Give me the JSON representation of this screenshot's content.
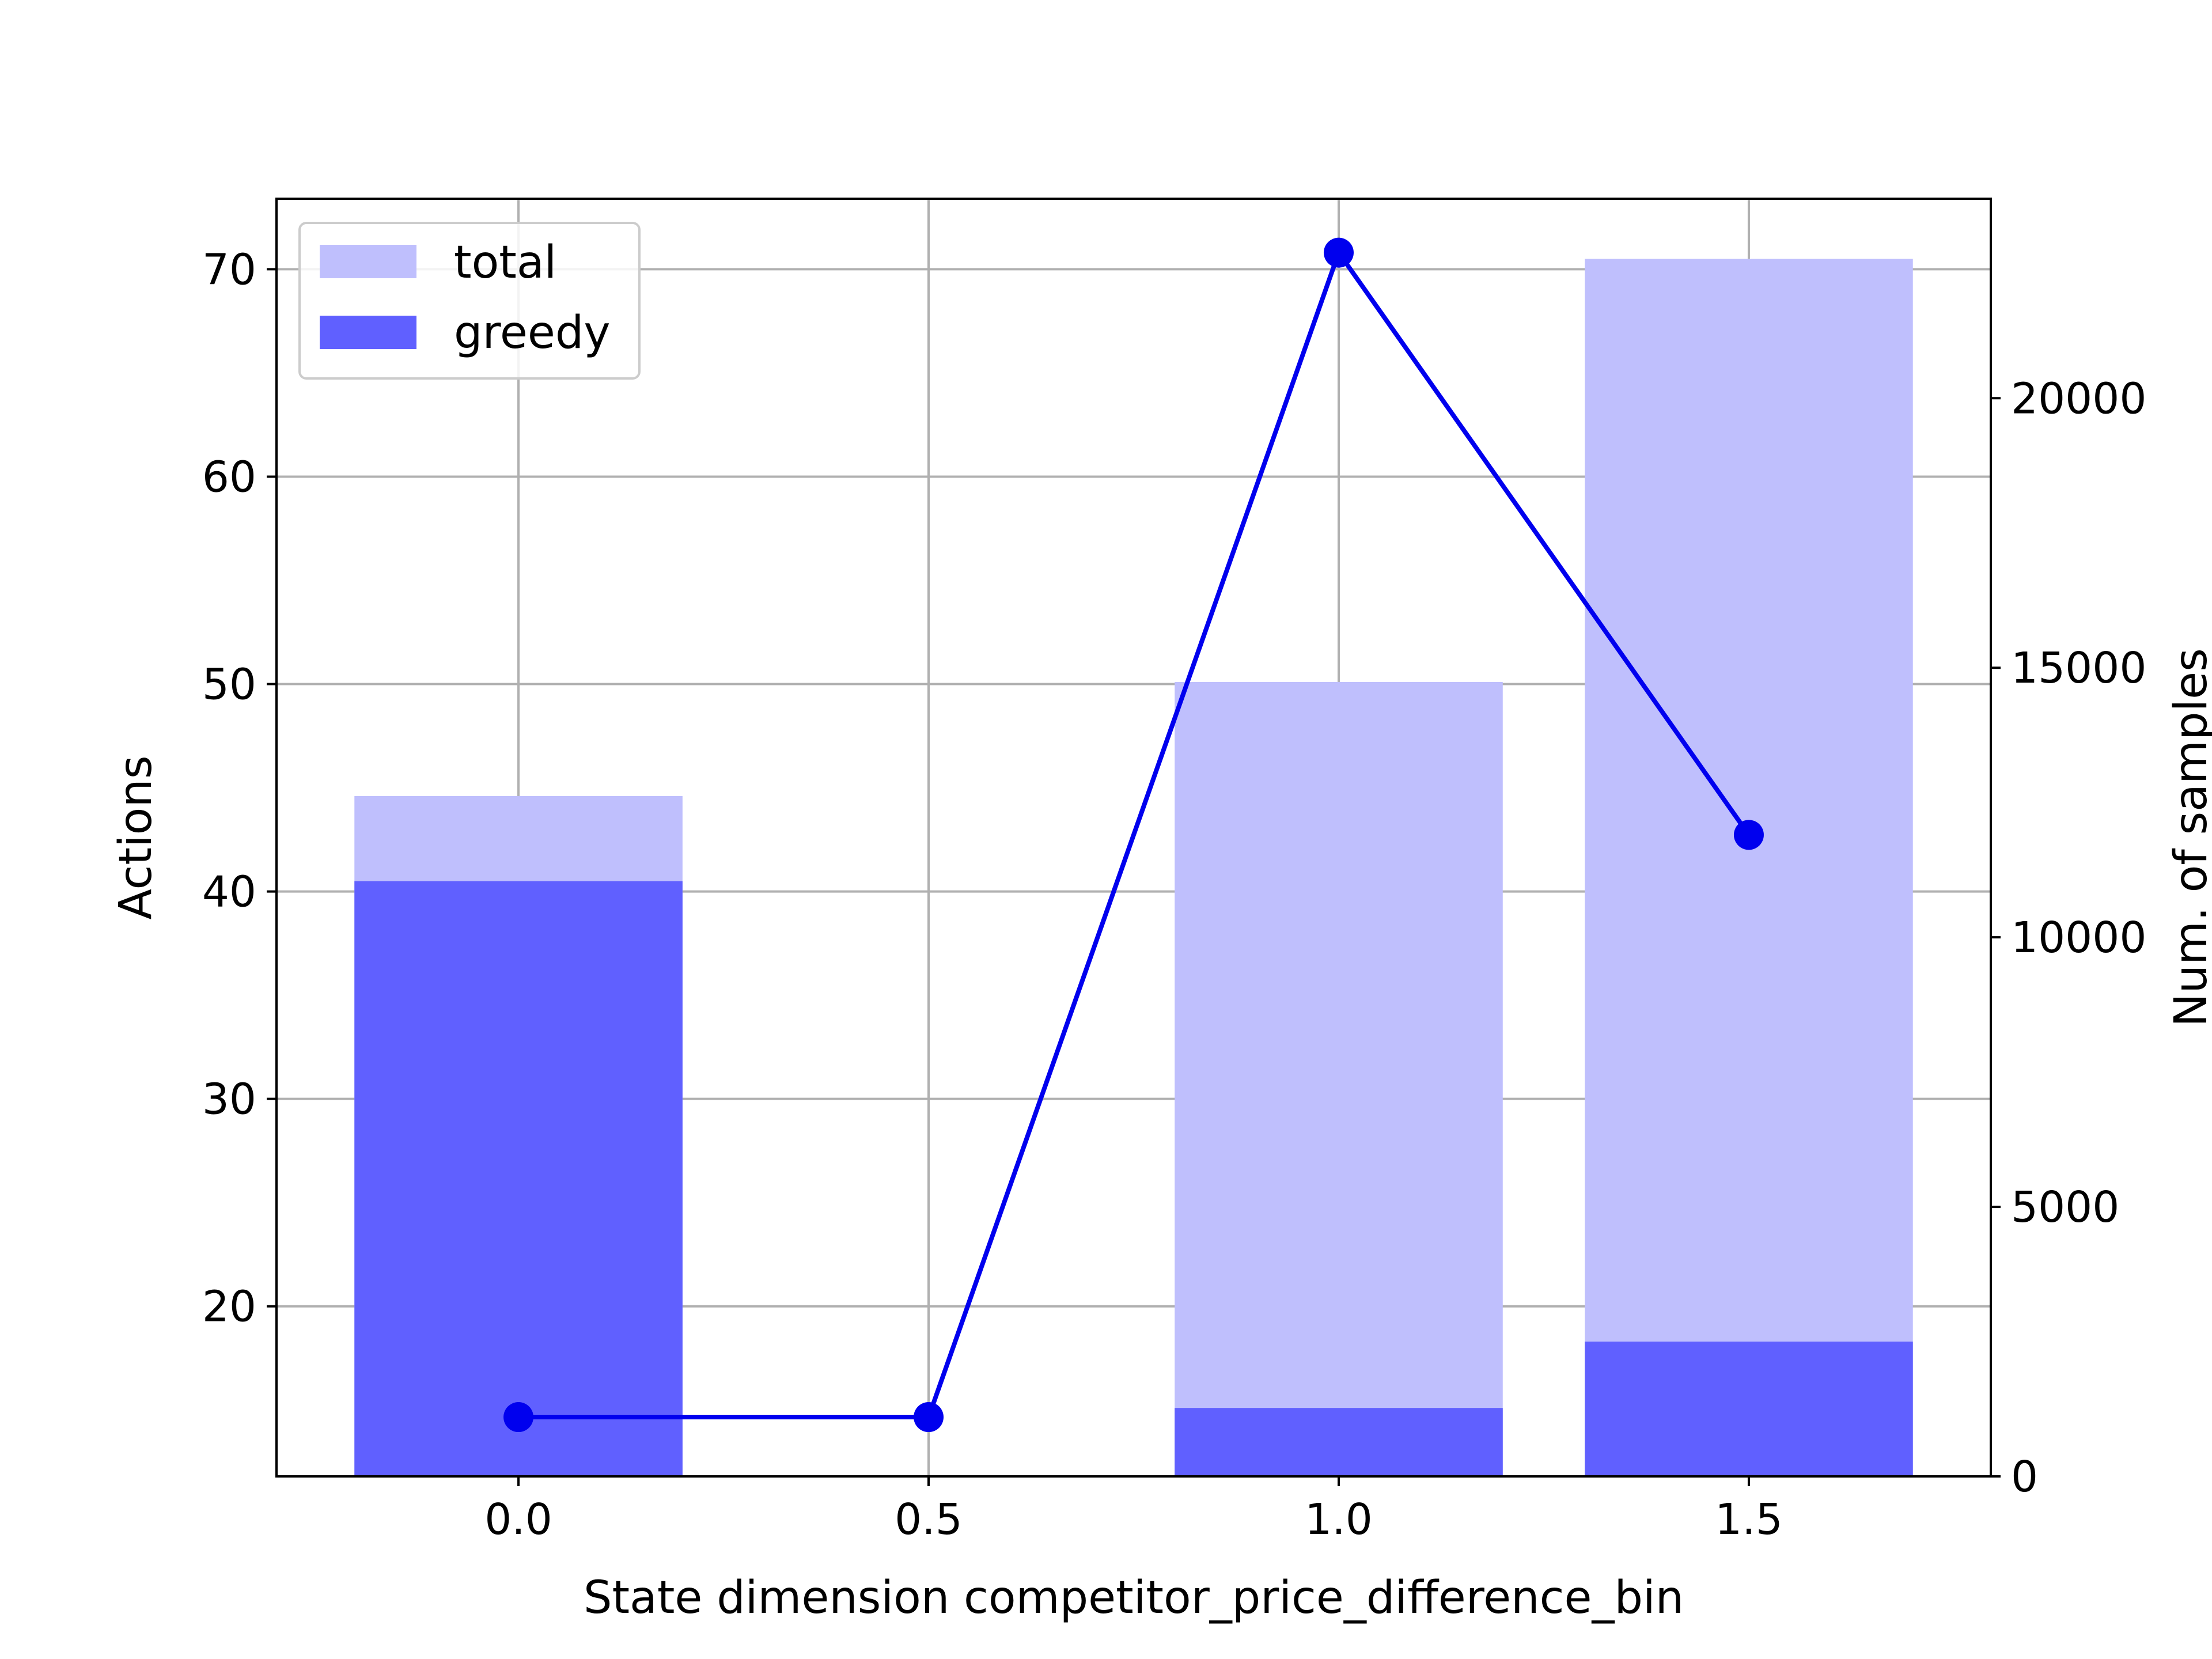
{
  "chart_data": {
    "type": "bar",
    "x": [
      0.0,
      0.5,
      1.0,
      1.5
    ],
    "xlabel": "State dimension competitor_price_difference_bin",
    "ylabel": "Actions",
    "y2label": "Num. of samples",
    "xlim": [
      -0.295,
      1.795
    ],
    "ylim": [
      11.8,
      73.4
    ],
    "y2lim": [
      0,
      23700
    ],
    "x_ticks": [
      "0.0",
      "0.5",
      "1.0",
      "1.5"
    ],
    "y_ticks": [
      "20",
      "30",
      "40",
      "50",
      "60",
      "70"
    ],
    "y2_ticks": [
      "0",
      "5000",
      "10000",
      "15000",
      "20000"
    ],
    "grid": true,
    "legend_position": "top-left",
    "bar_width": 0.4,
    "series": [
      {
        "name": "total",
        "kind": "bar",
        "axis": "left",
        "x": [
          0.0,
          1.0,
          1.5
        ],
        "values": [
          44.6,
          50.1,
          70.5
        ],
        "color": "#bfbffd"
      },
      {
        "name": "greedy",
        "kind": "bar",
        "axis": "left",
        "x": [
          0.0,
          1.0,
          1.5
        ],
        "values": [
          40.5,
          15.1,
          18.3
        ],
        "color": "#6060ff"
      },
      {
        "kind": "line",
        "axis": "right",
        "x": [
          0.0,
          0.5,
          1.0,
          1.5
        ],
        "values": [
          1100,
          1100,
          22700,
          11900
        ],
        "color": "#0000ee"
      }
    ]
  }
}
